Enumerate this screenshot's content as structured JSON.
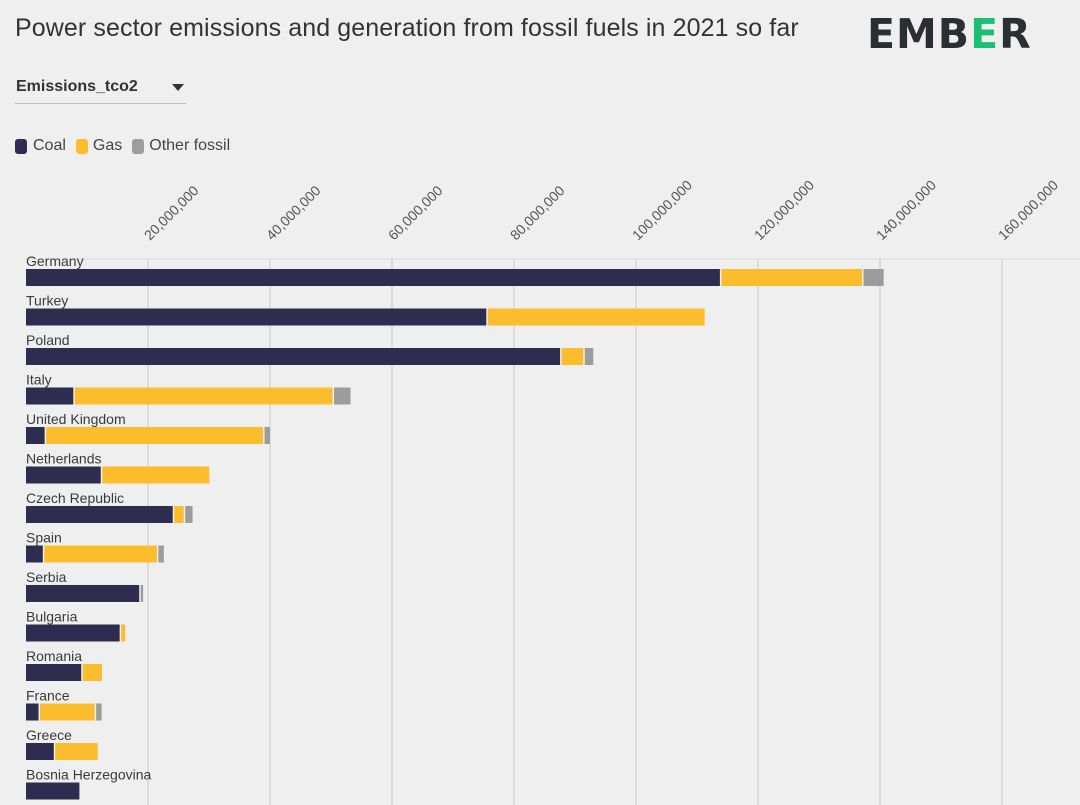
{
  "header": {
    "title": "Power sector emissions and generation from fossil fuels in 2021 so far"
  },
  "logo": {
    "part1": "EMB",
    "part2": "E",
    "part3": "R"
  },
  "dropdown": {
    "selected": "Emissions_tco2"
  },
  "legend": {
    "items": [
      {
        "label": "Coal",
        "color": "#2e2c4f"
      },
      {
        "label": "Gas",
        "color": "#fbbd2c"
      },
      {
        "label": "Other fossil",
        "color": "#9c9c9c"
      }
    ]
  },
  "chart_data": {
    "type": "bar",
    "orientation": "horizontal",
    "stacked": true,
    "title": "Power sector emissions and generation from fossil fuels in 2021 so far",
    "xlabel": "",
    "ylabel": "",
    "xlim": [
      0,
      170000000
    ],
    "ticks": [
      20000000,
      40000000,
      60000000,
      80000000,
      100000000,
      120000000,
      140000000,
      160000000
    ],
    "tick_labels": [
      "20,000,000",
      "40,000,000",
      "60,000,000",
      "80,000,000",
      "100,000,000",
      "120,000,000",
      "140,000,000",
      "160,000,000"
    ],
    "grid": true,
    "legend_position": "top-left",
    "categories": [
      "Germany",
      "Turkey",
      "Poland",
      "Italy",
      "United Kingdom",
      "Netherlands",
      "Czech Republic",
      "Spain",
      "Serbia",
      "Bulgaria",
      "Romania",
      "France",
      "Greece",
      "Bosnia Herzegovina"
    ],
    "series": [
      {
        "name": "Coal",
        "color": "#2e2c4f",
        "values": [
          114000000,
          75700000,
          87800000,
          8000000,
          3300000,
          12500000,
          24300000,
          3000000,
          18800000,
          15600000,
          9300000,
          2300000,
          4800000,
          9000000
        ]
      },
      {
        "name": "Gas",
        "color": "#fbbd2c",
        "values": [
          23300000,
          35800000,
          3800000,
          42500000,
          35800000,
          17800000,
          1800000,
          18700000,
          0,
          900000,
          3400000,
          9200000,
          7200000,
          0
        ]
      },
      {
        "name": "Other fossil",
        "color": "#9c9c9c",
        "values": [
          3300000,
          0,
          1400000,
          2700000,
          900000,
          0,
          1200000,
          900000,
          400000,
          0,
          0,
          900000,
          0,
          0
        ]
      }
    ]
  }
}
